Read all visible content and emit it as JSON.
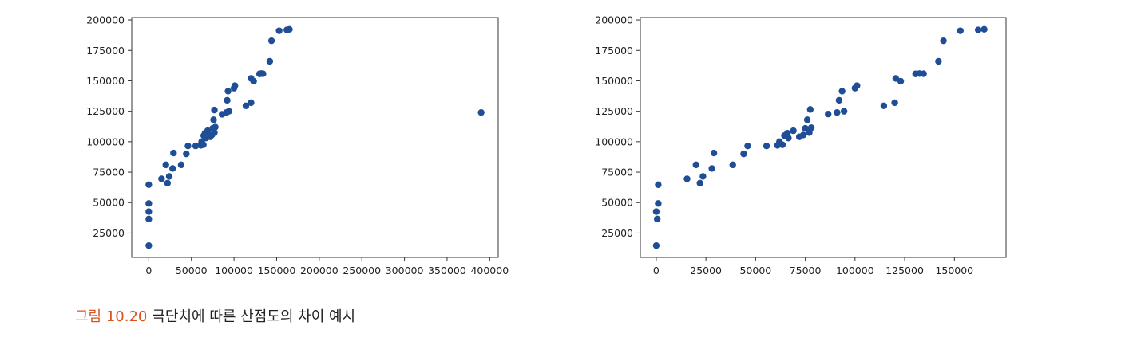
{
  "chart_data": [
    {
      "type": "scatter",
      "title": "",
      "xlabel": "",
      "ylabel": "",
      "xlim": [
        -20000,
        410000
      ],
      "ylim": [
        5000,
        202000
      ],
      "grid": false,
      "marker_color": "#1f4e96",
      "xticks": [
        0,
        50000,
        100000,
        150000,
        200000,
        250000,
        300000,
        350000,
        400000
      ],
      "yticks": [
        25000,
        50000,
        75000,
        100000,
        125000,
        150000,
        175000,
        200000
      ],
      "points": [
        [
          0,
          14700
        ],
        [
          0,
          36500
        ],
        [
          0,
          42600
        ],
        [
          0,
          49300
        ],
        [
          0,
          64700
        ],
        [
          15000,
          69500
        ],
        [
          20000,
          81000
        ],
        [
          22000,
          66000
        ],
        [
          24000,
          71500
        ],
        [
          28000,
          78000
        ],
        [
          29000,
          90700
        ],
        [
          38000,
          81000
        ],
        [
          44000,
          90000
        ],
        [
          46000,
          96500
        ],
        [
          55000,
          96500
        ],
        [
          61000,
          97000
        ],
        [
          62000,
          100000
        ],
        [
          64000,
          97500
        ],
        [
          64500,
          105000
        ],
        [
          66000,
          107000
        ],
        [
          67000,
          103000
        ],
        [
          69000,
          109000
        ],
        [
          72000,
          104000
        ],
        [
          74000,
          105500
        ],
        [
          75000,
          111000
        ],
        [
          76000,
          118000
        ],
        [
          77000,
          107500
        ],
        [
          78000,
          112000
        ],
        [
          77000,
          126000
        ],
        [
          86000,
          122500
        ],
        [
          91000,
          124000
        ],
        [
          92000,
          134000
        ],
        [
          93000,
          141500
        ],
        [
          94000,
          125000
        ],
        [
          100000,
          144000
        ],
        [
          101000,
          146000
        ],
        [
          114000,
          129500
        ],
        [
          120000,
          132000
        ],
        [
          120000,
          152000
        ],
        [
          123000,
          149700
        ],
        [
          130000,
          155700
        ],
        [
          132000,
          156000
        ],
        [
          134000,
          155800
        ],
        [
          142000,
          166000
        ],
        [
          144000,
          182900
        ],
        [
          153000,
          191100
        ],
        [
          162000,
          191800
        ],
        [
          165000,
          192300
        ],
        [
          390000,
          124000
        ]
      ]
    },
    {
      "type": "scatter",
      "title": "",
      "xlabel": "",
      "ylabel": "",
      "xlim": [
        -8000,
        176000
      ],
      "ylim": [
        5000,
        202000
      ],
      "grid": false,
      "marker_color": "#1f4e96",
      "xticks": [
        0,
        25000,
        50000,
        75000,
        100000,
        125000,
        150000
      ],
      "yticks": [
        25000,
        50000,
        75000,
        100000,
        125000,
        150000,
        175000,
        200000
      ],
      "points": [
        [
          0,
          14700
        ],
        [
          500,
          36500
        ],
        [
          0,
          42600
        ],
        [
          1000,
          49300
        ],
        [
          1000,
          64700
        ],
        [
          15500,
          69500
        ],
        [
          20000,
          81000
        ],
        [
          22000,
          66000
        ],
        [
          23500,
          71500
        ],
        [
          28000,
          78000
        ],
        [
          29000,
          90700
        ],
        [
          38500,
          81000
        ],
        [
          44000,
          90000
        ],
        [
          46000,
          96500
        ],
        [
          55500,
          96500
        ],
        [
          61000,
          97000
        ],
        [
          62000,
          100000
        ],
        [
          63500,
          97500
        ],
        [
          64500,
          105000
        ],
        [
          66000,
          107000
        ],
        [
          66500,
          103000
        ],
        [
          69000,
          109000
        ],
        [
          72000,
          104000
        ],
        [
          74000,
          105500
        ],
        [
          75000,
          111000
        ],
        [
          76000,
          118000
        ],
        [
          77000,
          107500
        ],
        [
          78000,
          111500
        ],
        [
          77500,
          126500
        ],
        [
          86500,
          122700
        ],
        [
          91000,
          124000
        ],
        [
          92000,
          134000
        ],
        [
          93500,
          141500
        ],
        [
          94500,
          125000
        ],
        [
          100000,
          144000
        ],
        [
          101000,
          146000
        ],
        [
          114500,
          129500
        ],
        [
          120000,
          132000
        ],
        [
          120500,
          152000
        ],
        [
          123000,
          149700
        ],
        [
          130500,
          155700
        ],
        [
          132500,
          156000
        ],
        [
          134500,
          155800
        ],
        [
          142000,
          166000
        ],
        [
          144500,
          182900
        ],
        [
          153000,
          191100
        ],
        [
          162000,
          191800
        ],
        [
          165000,
          192300
        ]
      ]
    }
  ],
  "caption": {
    "label": "그림 10.20",
    "text": "극단치에 따른 산점도의 차이 예시"
  }
}
